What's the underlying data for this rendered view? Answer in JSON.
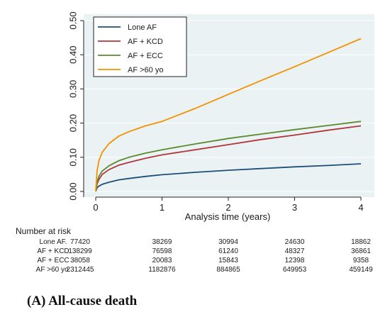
{
  "chart_data": {
    "type": "line",
    "xlabel": "Analysis time (years)",
    "ylabel": "",
    "xlim": [
      0,
      4
    ],
    "ylim": [
      0,
      0.5
    ],
    "x_ticks": [
      "0",
      "1",
      "2",
      "3",
      "4"
    ],
    "y_ticks": [
      "0.00",
      "0.10",
      "0.20",
      "0.30",
      "0.40",
      "0.50"
    ],
    "grid": "horizontal",
    "legend_position": "top-left",
    "series": [
      {
        "name": "Lone AF",
        "color": "#1f4e79",
        "x": [
          0,
          0.02,
          0.05,
          0.1,
          0.2,
          0.35,
          0.5,
          0.75,
          1,
          1.5,
          2,
          2.5,
          3,
          3.5,
          4
        ],
        "y": [
          0,
          0.011,
          0.016,
          0.021,
          0.027,
          0.034,
          0.038,
          0.044,
          0.049,
          0.056,
          0.062,
          0.067,
          0.072,
          0.076,
          0.081
        ]
      },
      {
        "name": "AF + KCD",
        "color": "#b0363d",
        "x": [
          0,
          0.02,
          0.05,
          0.1,
          0.2,
          0.35,
          0.5,
          0.75,
          1,
          1.5,
          2,
          2.5,
          3,
          3.5,
          4
        ],
        "y": [
          0,
          0.022,
          0.036,
          0.05,
          0.064,
          0.077,
          0.085,
          0.097,
          0.107,
          0.122,
          0.137,
          0.152,
          0.165,
          0.179,
          0.192
        ]
      },
      {
        "name": "AF + ECC",
        "color": "#5b8a2e",
        "x": [
          0,
          0.02,
          0.05,
          0.1,
          0.2,
          0.35,
          0.5,
          0.75,
          1,
          1.5,
          2,
          2.5,
          3,
          3.5,
          4
        ],
        "y": [
          0,
          0.028,
          0.045,
          0.06,
          0.075,
          0.09,
          0.1,
          0.112,
          0.122,
          0.139,
          0.155,
          0.168,
          0.181,
          0.193,
          0.205
        ]
      },
      {
        "name": "AF >60 yo",
        "color": "#f39200",
        "x": [
          0,
          0.02,
          0.05,
          0.1,
          0.2,
          0.35,
          0.5,
          0.75,
          1,
          1.5,
          2,
          2.5,
          3,
          3.5,
          4
        ],
        "y": [
          0,
          0.06,
          0.092,
          0.115,
          0.14,
          0.162,
          0.175,
          0.192,
          0.205,
          0.243,
          0.284,
          0.325,
          0.365,
          0.406,
          0.447
        ]
      }
    ]
  },
  "risk_table": {
    "title": "Number at risk",
    "rows": [
      {
        "label": "Lone AF.",
        "values": [
          "77420",
          "38269",
          "30994",
          "24630",
          "18862"
        ]
      },
      {
        "label": "AF + KCD",
        "values": [
          "138299",
          "76598",
          "61240",
          "48327",
          "36861"
        ]
      },
      {
        "label": "AF + ECC",
        "values": [
          "38058",
          "20083",
          "15843",
          "12398",
          "9358"
        ]
      },
      {
        "label": "AF >60 yo.",
        "values": [
          "2312445",
          "1182876",
          "884865",
          "649953",
          "459149"
        ]
      }
    ]
  },
  "caption": "(A) All-cause death"
}
